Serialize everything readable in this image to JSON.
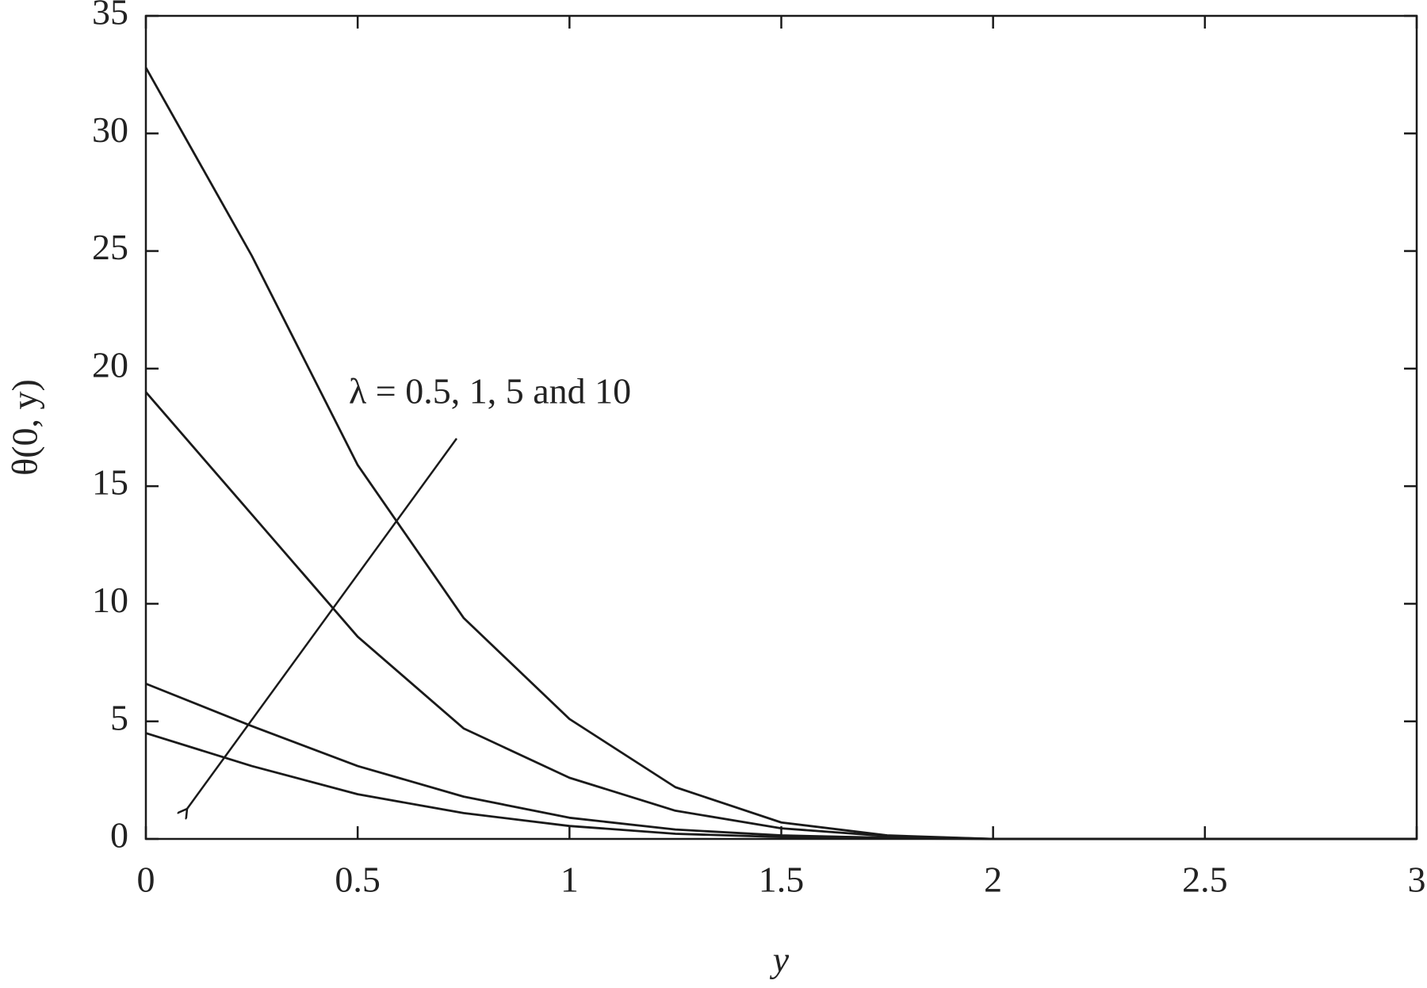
{
  "chart_data": {
    "type": "line",
    "x_label": "y",
    "y_label": "θ(0, y)",
    "annotation": "λ = 0.5, 1, 5 and 10",
    "x": [
      0,
      0.25,
      0.5,
      0.75,
      1,
      1.25,
      1.5,
      1.75,
      2,
      2.5,
      3
    ],
    "series": [
      {
        "color": "#1a1a1a",
        "values": [
          32.8,
          24.8,
          15.9,
          9.4,
          5.1,
          2.2,
          0.7,
          0.15,
          0,
          0,
          0
        ]
      },
      {
        "color": "#1a1a1a",
        "values": [
          19,
          13.8,
          8.6,
          4.7,
          2.6,
          1.2,
          0.45,
          0.12,
          0,
          0,
          0
        ]
      },
      {
        "color": "#1a1a1a",
        "values": [
          6.6,
          4.8,
          3.1,
          1.8,
          0.9,
          0.4,
          0.15,
          0.05,
          0,
          0,
          0
        ]
      },
      {
        "color": "#1a1a1a",
        "values": [
          4.5,
          3.1,
          1.9,
          1.1,
          0.55,
          0.22,
          0.08,
          0.02,
          0,
          0,
          0
        ]
      }
    ],
    "xlim": [
      0,
      3
    ],
    "xticks": [
      0,
      0.5,
      1,
      1.5,
      2,
      2.5,
      3
    ],
    "ylim": [
      0,
      35
    ],
    "yticks": [
      0,
      5,
      10,
      15,
      20,
      25,
      30,
      35
    ],
    "grid": false
  }
}
